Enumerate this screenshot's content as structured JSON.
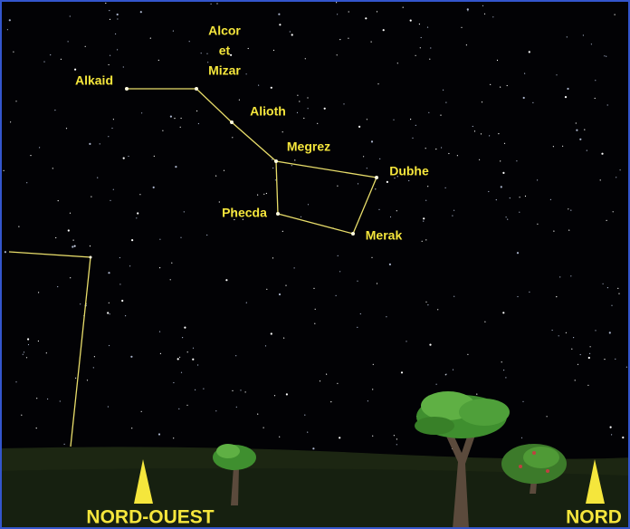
{
  "stars": [
    {
      "lines": [
        "Alkaid"
      ]
    },
    {
      "lines": [
        "Alcor",
        "et",
        "Mizar"
      ]
    },
    {
      "lines": [
        "Alioth"
      ]
    },
    {
      "lines": [
        "Megrez"
      ]
    },
    {
      "lines": [
        "Dubhe"
      ]
    },
    {
      "lines": [
        "Phecda"
      ]
    },
    {
      "lines": [
        "Merak"
      ]
    }
  ],
  "directions": [
    "NORD-OUEST",
    "NORD"
  ]
}
